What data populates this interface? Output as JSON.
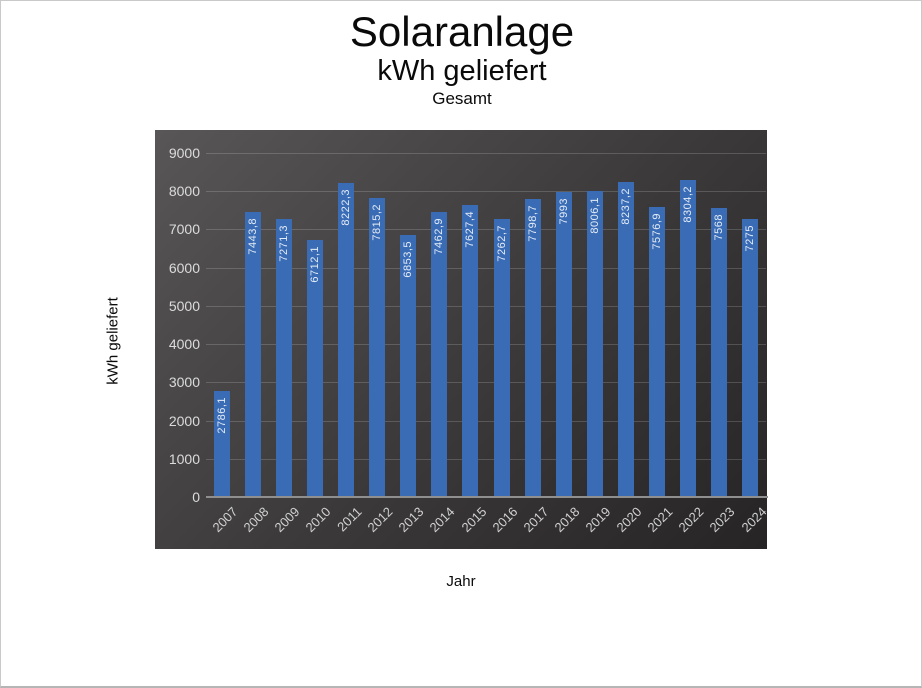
{
  "titles": {
    "main": "Solaranlage",
    "sub": "kWh geliefert",
    "subsub": "Gesamt"
  },
  "axes": {
    "x_title": "Jahr",
    "y_title": "kWh geliefert"
  },
  "chart_data": {
    "type": "bar",
    "title": "Solaranlage",
    "subtitle": "kWh geliefert",
    "series_name": "Gesamt",
    "xlabel": "Jahr",
    "ylabel": "kWh geliefert",
    "categories": [
      "2007",
      "2008",
      "2009",
      "2010",
      "2011",
      "2012",
      "2013",
      "2014",
      "2015",
      "2016",
      "2017",
      "2018",
      "2019",
      "2020",
      "2021",
      "2022",
      "2023",
      "2024"
    ],
    "values": [
      2786.1,
      7443.8,
      7271.3,
      6712.1,
      8222.3,
      7815.2,
      6853.5,
      7462.9,
      7627.4,
      7262.7,
      7798.7,
      7993,
      8006.1,
      8237.2,
      7576.9,
      8304.2,
      7568,
      7275
    ],
    "value_labels": [
      "2786,1",
      "7443,8",
      "7271,3",
      "6712,1",
      "8222,3",
      "7815,2",
      "6853,5",
      "7462,9",
      "7627,4",
      "7262,7",
      "7798,7",
      "7993",
      "8006,1",
      "8237,2",
      "7576,9",
      "8304,2",
      "7568",
      "7275"
    ],
    "ylim": [
      0,
      9000
    ],
    "yticks": [
      9000,
      8000,
      7000,
      6000,
      5000,
      4000,
      3000,
      2000,
      1000,
      0
    ],
    "grid": true,
    "legend_position": "none",
    "colors": {
      "bar": "#3a6cb5",
      "value_label": "#e3ebf6",
      "tick_label": "#dcdcdc",
      "plot_bg_start": "#585656",
      "plot_bg_end": "#262424",
      "gridline": "rgba(255,255,255,0.17)",
      "baseline": "#8f8f8f"
    }
  }
}
